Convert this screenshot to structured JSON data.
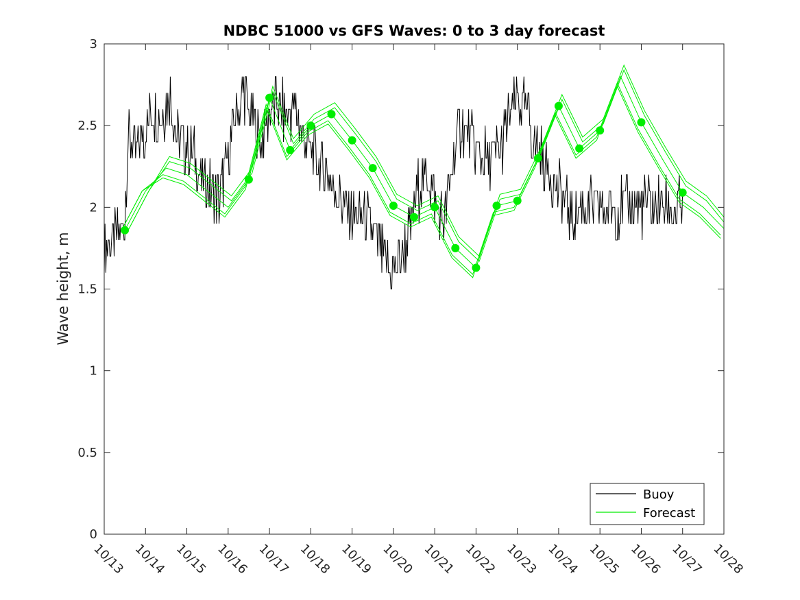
{
  "chart_data": {
    "type": "line",
    "title": "NDBC 51000 vs GFS Waves: 0 to 3 day forecast",
    "xlabel": "",
    "ylabel": "Wave height, m",
    "x_tick_labels": [
      "10/13",
      "10/14",
      "10/15",
      "10/16",
      "10/17",
      "10/18",
      "10/19",
      "10/20",
      "10/21",
      "10/22",
      "10/23",
      "10/24",
      "10/25",
      "10/26",
      "10/27",
      "10/28"
    ],
    "xlim_days": [
      0,
      15
    ],
    "ylim": [
      0,
      3
    ],
    "y_ticks": [
      "0",
      "0.5",
      "1",
      "1.5",
      "2",
      "2.5",
      "3"
    ],
    "y_tick_values": [
      0,
      0.5,
      1,
      1.5,
      2,
      2.5,
      3
    ],
    "legend": {
      "position": "bottom-right",
      "entries": [
        {
          "label": "Buoy",
          "color": "#000000"
        },
        {
          "label": "Forecast",
          "color": "#00ee00"
        }
      ]
    },
    "colors": {
      "buoy": "#000000",
      "forecast": "#00ee00",
      "axis": "#262626"
    },
    "series": [
      {
        "name": "Buoy",
        "description": "Observed significant wave height, days since 10/13 00Z",
        "x": [
          0,
          0.3,
          0.5,
          0.55,
          0.6,
          0.75,
          1.0,
          1.2,
          1.4,
          1.6,
          1.8,
          2.0,
          2.2,
          2.4,
          2.6,
          2.8,
          3.0,
          3.2,
          3.4,
          3.6,
          3.8,
          4.0,
          4.2,
          4.4,
          4.6,
          4.8,
          5.0,
          5.2,
          5.4,
          5.6,
          5.8,
          6.0,
          6.2,
          6.4,
          6.6,
          6.8,
          7.0,
          7.2,
          7.4,
          7.6,
          7.8,
          8.0,
          8.2,
          8.4,
          8.6,
          8.8,
          9.0,
          9.2,
          9.4,
          9.6,
          9.8,
          10.0,
          10.2,
          10.4,
          10.6,
          10.8,
          11.0,
          11.2,
          11.4,
          11.6,
          11.8,
          12.0,
          12.2,
          12.4,
          12.6,
          12.8,
          13.0,
          13.2,
          13.4,
          13.6,
          13.8,
          14.0
        ],
        "y": [
          1.75,
          1.8,
          1.9,
          2.3,
          2.45,
          2.3,
          2.5,
          2.6,
          2.55,
          2.7,
          2.4,
          2.35,
          2.3,
          2.15,
          2.1,
          2.05,
          2.3,
          2.6,
          2.7,
          2.5,
          2.4,
          2.6,
          2.65,
          2.55,
          2.6,
          2.45,
          2.35,
          2.25,
          2.2,
          2.1,
          2.0,
          1.95,
          1.95,
          1.9,
          1.8,
          1.65,
          1.6,
          1.7,
          1.85,
          2.1,
          2.2,
          2.05,
          1.9,
          2.2,
          2.5,
          2.45,
          2.35,
          2.3,
          2.3,
          2.35,
          2.55,
          2.65,
          2.6,
          2.4,
          2.3,
          2.2,
          2.1,
          2.0,
          1.95,
          2.0,
          2.0,
          2.0,
          2.0,
          2.0,
          2.0,
          2.0,
          2.0,
          2.0,
          2.0,
          2.0,
          2.0,
          2.0
        ]
      },
      {
        "name": "Forecast",
        "description": "GFS wave forecast (daily analysis points)",
        "x": [
          0.5,
          1.0,
          1.5,
          2.0,
          2.5,
          3.0,
          3.5,
          4.0,
          4.5,
          5.0,
          5.5,
          6.0,
          6.5,
          7.0,
          7.5,
          8.0,
          8.5,
          9.0,
          9.5,
          10.0,
          10.5,
          11.0,
          11.5,
          12.0,
          12.5,
          13.0,
          13.5,
          14.0,
          14.5,
          15.0
        ],
        "y": [
          1.86,
          2.1,
          2.24,
          2.2,
          2.1,
          2.0,
          2.17,
          2.67,
          2.35,
          2.5,
          2.57,
          2.41,
          2.24,
          2.01,
          1.94,
          2.0,
          1.75,
          1.63,
          2.01,
          2.04,
          2.3,
          2.62,
          2.36,
          2.47,
          2.8,
          2.52,
          2.3,
          2.09,
          2.0,
          1.87
        ],
        "markers_x": [
          0.5,
          3.5,
          4.0,
          4.5,
          5.0,
          5.5,
          6.0,
          6.5,
          7.0,
          7.5,
          8.0,
          8.5,
          9.0,
          9.5,
          10.0,
          10.5,
          11.0,
          11.5,
          12.0,
          13.0,
          14.0
        ],
        "markers_y": [
          1.86,
          2.17,
          2.67,
          2.35,
          2.5,
          2.57,
          2.41,
          2.24,
          2.01,
          1.94,
          2.0,
          1.75,
          1.63,
          2.01,
          2.04,
          2.3,
          2.62,
          2.36,
          2.47,
          2.52,
          2.09
        ]
      }
    ]
  }
}
